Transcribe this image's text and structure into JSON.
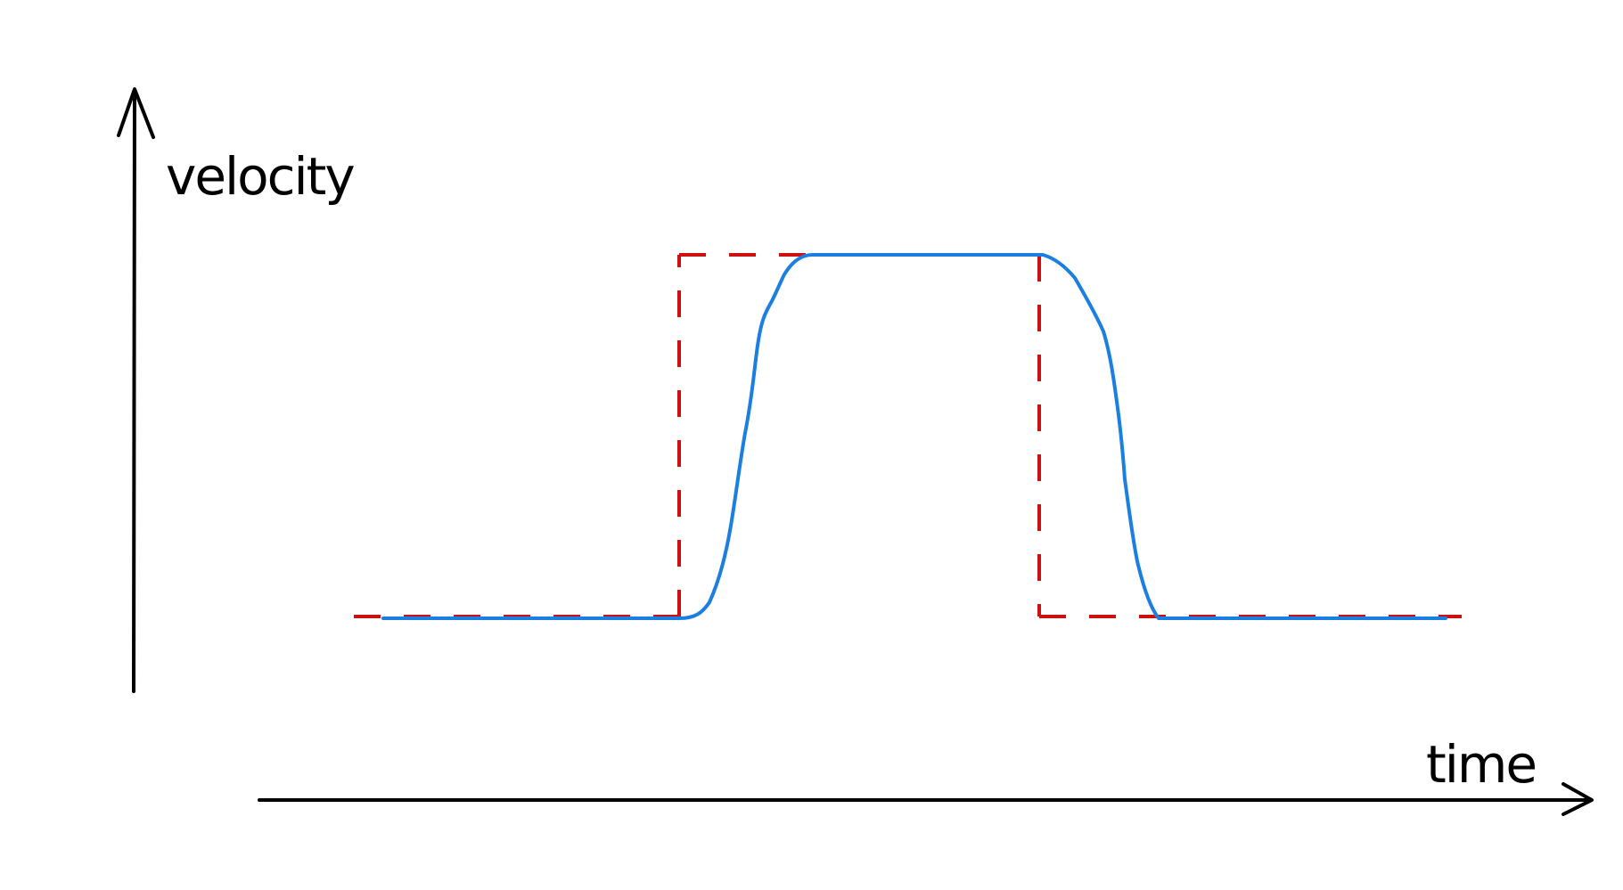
{
  "labels": {
    "y_axis": "velocity",
    "x_axis": "time"
  },
  "colors": {
    "axes": "#000000",
    "ideal_profile": "#cc1111",
    "actual_profile": "#1a7fe0"
  },
  "ideal_profile": {
    "style": "dashed",
    "color": "#cc1111",
    "description_shape": "rectangular step: low, jump up, high plateau, drop down, low"
  },
  "actual_profile": {
    "style": "solid",
    "color": "#1a7fe0",
    "description_shape": "smooth step: low, ramp up, high plateau, ramp down, low"
  }
}
